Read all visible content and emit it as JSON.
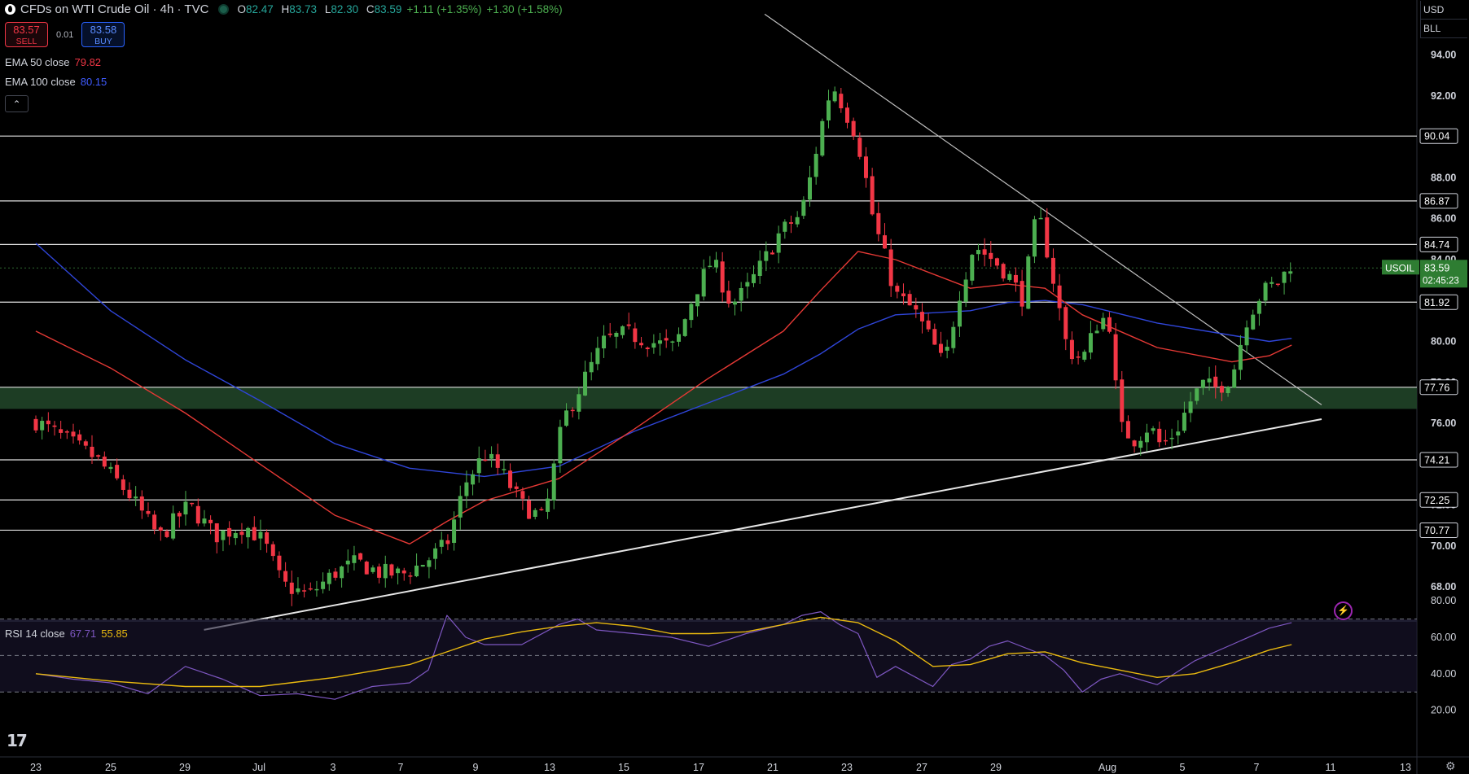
{
  "header": {
    "title": "CFDs on WTI Crude Oil · 4h · TVC",
    "o_label": "O",
    "o": "82.47",
    "h_label": "H",
    "h": "83.73",
    "l_label": "L",
    "l": "82.30",
    "c_label": "C",
    "c": "83.59",
    "change": "+1.11 (+1.35%)",
    "change2": "+1.30 (+1.58%)"
  },
  "trade": {
    "sell_price": "83.57",
    "sell_label": "SELL",
    "spread": "0.01",
    "buy_price": "83.58",
    "buy_label": "BUY"
  },
  "indicators": {
    "ema50_label": "EMA 50 close",
    "ema50_value": "79.82",
    "ema100_label": "EMA 100 close",
    "ema100_value": "80.15",
    "rsi_label": "RSI 14 close",
    "rsi_value": "67.71",
    "rsi_ma_value": "55.85"
  },
  "price_scale": {
    "currency": "USD",
    "unit": "BLL",
    "symbol": "USOIL",
    "last": "83.59",
    "countdown": "02:45:23"
  },
  "colors": {
    "up": "#4caf50",
    "down": "#f23645",
    "ema50": "#e53935",
    "ema100": "#2f45d8",
    "rsi": "#7e57c2",
    "rsi_ma": "#e9b90f",
    "zone": "#1d3d24"
  },
  "icons": [
    "logo-icon",
    "market-status-icon",
    "collapse-icon",
    "tradingview-logo-icon",
    "bolt-icon",
    "gear-icon"
  ],
  "chart_data": [
    {
      "type": "candlestick",
      "title": "CFDs on WTI Crude Oil · 4h · TVC",
      "ylim": [
        66.0,
        95.0
      ],
      "y_ticks": [
        "94.00",
        "92.00",
        "90.00",
        "88.00",
        "86.00",
        "84.00",
        "82.00",
        "80.00",
        "78.00",
        "76.00",
        "74.00",
        "72.00",
        "70.00",
        "68.00"
      ],
      "x_ticks": [
        "23",
        "25",
        "29",
        "Jul",
        "3",
        "7",
        "9",
        "13",
        "15",
        "17",
        "21",
        "23",
        "27",
        "29",
        "Aug",
        "5",
        "7",
        "11",
        "13"
      ],
      "horizontal_levels": [
        90.04,
        86.87,
        84.74,
        81.92,
        77.76,
        74.21,
        72.25,
        70.77
      ],
      "level_labels": [
        "90.04",
        "86.87",
        "84.74",
        "81.92",
        "77.76",
        "74.21",
        "72.25",
        "70.77"
      ],
      "support_zone": [
        76.7,
        77.76
      ],
      "trendlines": [
        {
          "name": "descending resistance",
          "from": [
            19.5,
            96.0
          ],
          "to": [
            34.4,
            76.9
          ]
        },
        {
          "name": "ascending support",
          "from": [
            4.5,
            65.9
          ],
          "to": [
            34.4,
            76.2
          ]
        }
      ],
      "close_path": [
        [
          0.0,
          76.1
        ],
        [
          0.8,
          75.2
        ],
        [
          1.6,
          74.3
        ],
        [
          2.5,
          72.5
        ],
        [
          3.3,
          70.4
        ],
        [
          4.1,
          72.0
        ],
        [
          4.8,
          70.5
        ],
        [
          5.6,
          71.0
        ],
        [
          6.1,
          70.2
        ],
        [
          6.6,
          68.1
        ],
        [
          7.3,
          67.6
        ],
        [
          8.0,
          68.7
        ],
        [
          8.6,
          69.2
        ],
        [
          9.2,
          68.7
        ],
        [
          9.8,
          68.6
        ],
        [
          10.4,
          69.2
        ],
        [
          11.0,
          70.1
        ],
        [
          11.5,
          73.1
        ],
        [
          12.0,
          74.5
        ],
        [
          12.5,
          73.5
        ],
        [
          13.0,
          72.0
        ],
        [
          13.6,
          71.3
        ],
        [
          14.1,
          76.1
        ],
        [
          14.6,
          77.9
        ],
        [
          15.2,
          80.0
        ],
        [
          15.8,
          80.4
        ],
        [
          16.4,
          80.0
        ],
        [
          17.1,
          79.7
        ],
        [
          17.6,
          82.3
        ],
        [
          18.1,
          84.0
        ],
        [
          18.6,
          81.8
        ],
        [
          19.0,
          82.5
        ],
        [
          19.5,
          84.0
        ],
        [
          19.9,
          85.3
        ],
        [
          20.4,
          86.1
        ],
        [
          20.6,
          87.0
        ],
        [
          21.0,
          90.4
        ],
        [
          21.3,
          92.6
        ],
        [
          21.6,
          91.5
        ],
        [
          21.9,
          90.3
        ],
        [
          22.1,
          89.0
        ],
        [
          22.4,
          86.0
        ],
        [
          22.7,
          84.2
        ],
        [
          23.0,
          82.3
        ],
        [
          23.5,
          81.5
        ],
        [
          24.0,
          79.9
        ],
        [
          24.3,
          78.8
        ],
        [
          24.7,
          82.3
        ],
        [
          25.1,
          84.7
        ],
        [
          25.6,
          84.0
        ],
        [
          26.0,
          83.3
        ],
        [
          26.4,
          82.1
        ],
        [
          26.8,
          86.4
        ],
        [
          27.1,
          84.1
        ],
        [
          27.6,
          79.6
        ],
        [
          28.0,
          79.1
        ],
        [
          28.4,
          80.9
        ],
        [
          28.7,
          81.3
        ],
        [
          29.0,
          75.8
        ],
        [
          29.4,
          75.2
        ],
        [
          29.8,
          75.9
        ],
        [
          30.1,
          74.9
        ],
        [
          30.5,
          75.6
        ],
        [
          30.9,
          77.1
        ],
        [
          31.2,
          77.9
        ],
        [
          31.6,
          77.7
        ],
        [
          32.0,
          78.3
        ],
        [
          32.4,
          81.1
        ],
        [
          32.8,
          82.4
        ],
        [
          33.3,
          83.0
        ],
        [
          33.6,
          83.9
        ]
      ],
      "series": [
        {
          "name": "EMA 50 close",
          "last_value": 79.82,
          "points": [
            [
              0.0,
              80.5
            ],
            [
              2.0,
              78.7
            ],
            [
              4.0,
              76.5
            ],
            [
              6.0,
              74.0
            ],
            [
              8.0,
              71.5
            ],
            [
              10.0,
              70.1
            ],
            [
              11.0,
              71.2
            ],
            [
              12.0,
              72.2
            ],
            [
              14.0,
              73.3
            ],
            [
              16.0,
              75.7
            ],
            [
              18.0,
              78.2
            ],
            [
              20.0,
              80.5
            ],
            [
              21.0,
              82.5
            ],
            [
              22.0,
              84.4
            ],
            [
              23.0,
              84.0
            ],
            [
              25.0,
              82.6
            ],
            [
              26.0,
              82.8
            ],
            [
              27.0,
              82.6
            ],
            [
              28.0,
              81.3
            ],
            [
              30.0,
              79.7
            ],
            [
              32.0,
              79.0
            ],
            [
              33.0,
              79.3
            ],
            [
              33.6,
              79.82
            ]
          ]
        },
        {
          "name": "EMA 100 close",
          "last_value": 80.15,
          "points": [
            [
              0.0,
              84.8
            ],
            [
              2.0,
              81.5
            ],
            [
              4.0,
              79.1
            ],
            [
              6.0,
              77.1
            ],
            [
              8.0,
              75.0
            ],
            [
              10.0,
              73.8
            ],
            [
              12.0,
              73.4
            ],
            [
              14.0,
              73.9
            ],
            [
              16.0,
              75.6
            ],
            [
              18.0,
              77.0
            ],
            [
              20.0,
              78.4
            ],
            [
              21.0,
              79.4
            ],
            [
              22.0,
              80.6
            ],
            [
              23.0,
              81.3
            ],
            [
              25.0,
              81.5
            ],
            [
              26.0,
              81.9
            ],
            [
              27.0,
              82.0
            ],
            [
              28.0,
              81.8
            ],
            [
              30.0,
              80.9
            ],
            [
              32.0,
              80.3
            ],
            [
              33.0,
              80.0
            ],
            [
              33.6,
              80.15
            ]
          ]
        }
      ]
    },
    {
      "type": "line",
      "title": "RSI 14 close",
      "ylim": [
        15,
        85
      ],
      "y_ticks": [
        "80.00",
        "60.00",
        "40.00",
        "20.00"
      ],
      "bands": [
        30,
        50,
        70
      ],
      "series": [
        {
          "name": "RSI 14 close",
          "last_value": 67.71,
          "points": [
            [
              0,
              40
            ],
            [
              1,
              37
            ],
            [
              2,
              35
            ],
            [
              3,
              29
            ],
            [
              4,
              44
            ],
            [
              5,
              37
            ],
            [
              6,
              28
            ],
            [
              7,
              29
            ],
            [
              8,
              26
            ],
            [
              9,
              33
            ],
            [
              10,
              35
            ],
            [
              10.5,
              42
            ],
            [
              11,
              72
            ],
            [
              11.5,
              60
            ],
            [
              12,
              56
            ],
            [
              13,
              56
            ],
            [
              14,
              67
            ],
            [
              14.5,
              70
            ],
            [
              15,
              64
            ],
            [
              16,
              62
            ],
            [
              17,
              60
            ],
            [
              18,
              55
            ],
            [
              19,
              62
            ],
            [
              20,
              67
            ],
            [
              20.5,
              72
            ],
            [
              21,
              74
            ],
            [
              21.5,
              67
            ],
            [
              22,
              62
            ],
            [
              22.5,
              38
            ],
            [
              23,
              44
            ],
            [
              24,
              33
            ],
            [
              24.5,
              45
            ],
            [
              25,
              48
            ],
            [
              25.5,
              55
            ],
            [
              26,
              58
            ],
            [
              27,
              50
            ],
            [
              27.5,
              42
            ],
            [
              28,
              30
            ],
            [
              28.5,
              37
            ],
            [
              29,
              40
            ],
            [
              30,
              34
            ],
            [
              31,
              47
            ],
            [
              32,
              56
            ],
            [
              33,
              65
            ],
            [
              33.6,
              68
            ]
          ]
        },
        {
          "name": "RSI-based MA",
          "last_value": 55.85,
          "points": [
            [
              0,
              40
            ],
            [
              2,
              36
            ],
            [
              4,
              33
            ],
            [
              6,
              33
            ],
            [
              8,
              38
            ],
            [
              10,
              45
            ],
            [
              11,
              52
            ],
            [
              12,
              59
            ],
            [
              13,
              63
            ],
            [
              14,
              66
            ],
            [
              15,
              68
            ],
            [
              16,
              66
            ],
            [
              17,
              62
            ],
            [
              18,
              62
            ],
            [
              19,
              63
            ],
            [
              20,
              67
            ],
            [
              21,
              71
            ],
            [
              22,
              68
            ],
            [
              23,
              58
            ],
            [
              24,
              44
            ],
            [
              25,
              45
            ],
            [
              26,
              51
            ],
            [
              27,
              52
            ],
            [
              28,
              46
            ],
            [
              29,
              42
            ],
            [
              30,
              38
            ],
            [
              31,
              40
            ],
            [
              32,
              46
            ],
            [
              33,
              53
            ],
            [
              33.6,
              56
            ]
          ]
        }
      ]
    }
  ]
}
